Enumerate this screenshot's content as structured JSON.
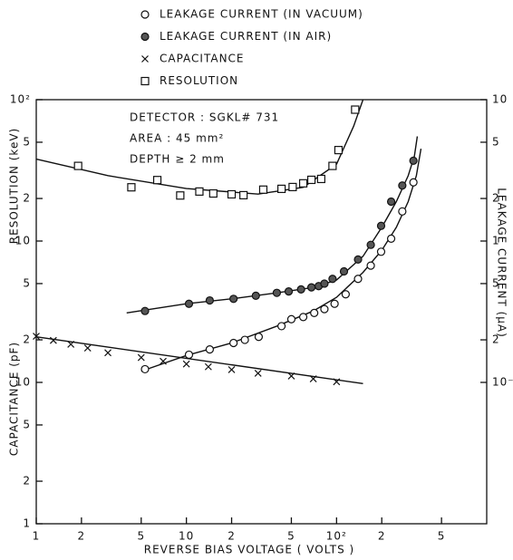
{
  "chart_data": {
    "type": "scatter",
    "log_x": true,
    "log_y": true,
    "x_label": "REVERSE BIAS VOLTAGE ( VOLTS )",
    "y_label": "CAPACITANCE (pF)",
    "y3_label": "RESOLUTION (keV)",
    "y2_label": "LEAKAGE CURRENT (μA)",
    "annotations": [
      "DETECTOR : SGKL# 731",
      "AREA : 45 mm²",
      "DEPTH ≥ 2 mm"
    ],
    "xlim": [
      1,
      1000
    ],
    "xticks": [
      1,
      2,
      5,
      10,
      {
        "value": 20,
        "label": "2"
      },
      {
        "value": 50,
        "label": "5"
      },
      {
        "value": 100,
        "label": "10²"
      },
      {
        "value": 200,
        "label": "2"
      },
      {
        "value": 500,
        "label": "5"
      }
    ],
    "ylim": [
      1,
      1000
    ],
    "yticks": [
      1,
      2,
      5,
      10,
      {
        "value": 20,
        "label": "2"
      },
      {
        "value": 50,
        "label": "5"
      }
    ],
    "y3lim": [
      0.1,
      100
    ],
    "y3ticks": [
      10,
      {
        "value": 20,
        "label": "2"
      },
      {
        "value": 50,
        "label": "5"
      },
      {
        "value": 100,
        "label": "10²"
      }
    ],
    "y2lim": [
      0.01,
      10
    ],
    "y2ticks": [
      {
        "value": 0.1,
        "label": "10⁻¹"
      },
      {
        "value": 0.2,
        "label": "2"
      },
      {
        "value": 0.5,
        "label": "5"
      },
      1,
      2,
      5,
      10
    ],
    "series": [
      {
        "name": "LEAKAGE CURRENT (IN VACUUM)",
        "marker": "open-circle",
        "color": "#111111",
        "axis": "y2",
        "x": [
          5.3,
          10.4,
          14.3,
          20.6,
          24.5,
          30.3,
          43,
          50,
          60,
          71,
          83,
          97,
          115,
          139,
          169,
          198,
          231,
          274,
          325
        ],
        "values": [
          0.124,
          0.157,
          0.171,
          0.19,
          0.2,
          0.21,
          0.25,
          0.28,
          0.29,
          0.31,
          0.33,
          0.36,
          0.42,
          0.54,
          0.67,
          0.84,
          1.04,
          1.62,
          2.6
        ]
      },
      {
        "name": "LEAKAGE CURRENT (IN AIR)",
        "marker": "filled-circle",
        "color": "#111111",
        "axis": "y2",
        "x": [
          5.3,
          10.4,
          14.3,
          20.6,
          29,
          40,
          48,
          58,
          68,
          76,
          83,
          94,
          112,
          139,
          169,
          198,
          231,
          274,
          325
        ],
        "values": [
          0.32,
          0.36,
          0.38,
          0.39,
          0.41,
          0.43,
          0.44,
          0.455,
          0.47,
          0.48,
          0.5,
          0.54,
          0.61,
          0.74,
          0.94,
          1.28,
          1.9,
          2.47,
          3.7
        ]
      },
      {
        "name": "CAPACITANCE",
        "marker": "x",
        "color": "#111111",
        "axis": "y",
        "x": [
          1,
          1.3,
          1.7,
          2.2,
          3,
          5,
          7,
          10,
          14,
          20,
          30,
          50,
          70,
          100
        ],
        "values": [
          21.2,
          19.8,
          18.6,
          17.5,
          16.2,
          15,
          14.1,
          13.5,
          12.9,
          12.3,
          11.6,
          11.1,
          10.6,
          10.1
        ]
      },
      {
        "name": "RESOLUTION",
        "marker": "square",
        "color": "#111111",
        "axis": "y3",
        "x": [
          1.9,
          4.3,
          6.4,
          9.1,
          12.2,
          15.1,
          20,
          24,
          32.5,
          43,
          51,
          60,
          68,
          79,
          94,
          103,
          133
        ],
        "values": [
          34,
          24,
          27,
          21,
          22.4,
          21.7,
          21.4,
          21.1,
          23.1,
          23.4,
          24.1,
          25.6,
          27.1,
          27.5,
          34,
          44,
          85
        ]
      }
    ],
    "curves": [
      {
        "axis": "y2",
        "x": [
          5,
          10,
          20,
          40,
          70,
          100,
          150,
          200,
          250,
          300,
          340,
          365
        ],
        "values": [
          0.12,
          0.155,
          0.19,
          0.25,
          0.32,
          0.4,
          0.6,
          0.86,
          1.25,
          1.9,
          2.9,
          4.5
        ]
      },
      {
        "axis": "y2",
        "x": [
          4,
          10,
          20,
          40,
          70,
          100,
          150,
          200,
          250,
          300,
          330,
          345
        ],
        "values": [
          0.31,
          0.36,
          0.39,
          0.43,
          0.47,
          0.53,
          0.78,
          1.25,
          1.9,
          2.9,
          4,
          5.5
        ]
      },
      {
        "axis": "y",
        "x": [
          1,
          150
        ],
        "values": [
          21,
          9.8
        ]
      },
      {
        "axis": "y3",
        "x": [
          1,
          3,
          10,
          30,
          60,
          100,
          130,
          150
        ],
        "values": [
          38,
          29,
          23.5,
          21.5,
          24,
          35,
          65,
          100
        ]
      }
    ]
  }
}
